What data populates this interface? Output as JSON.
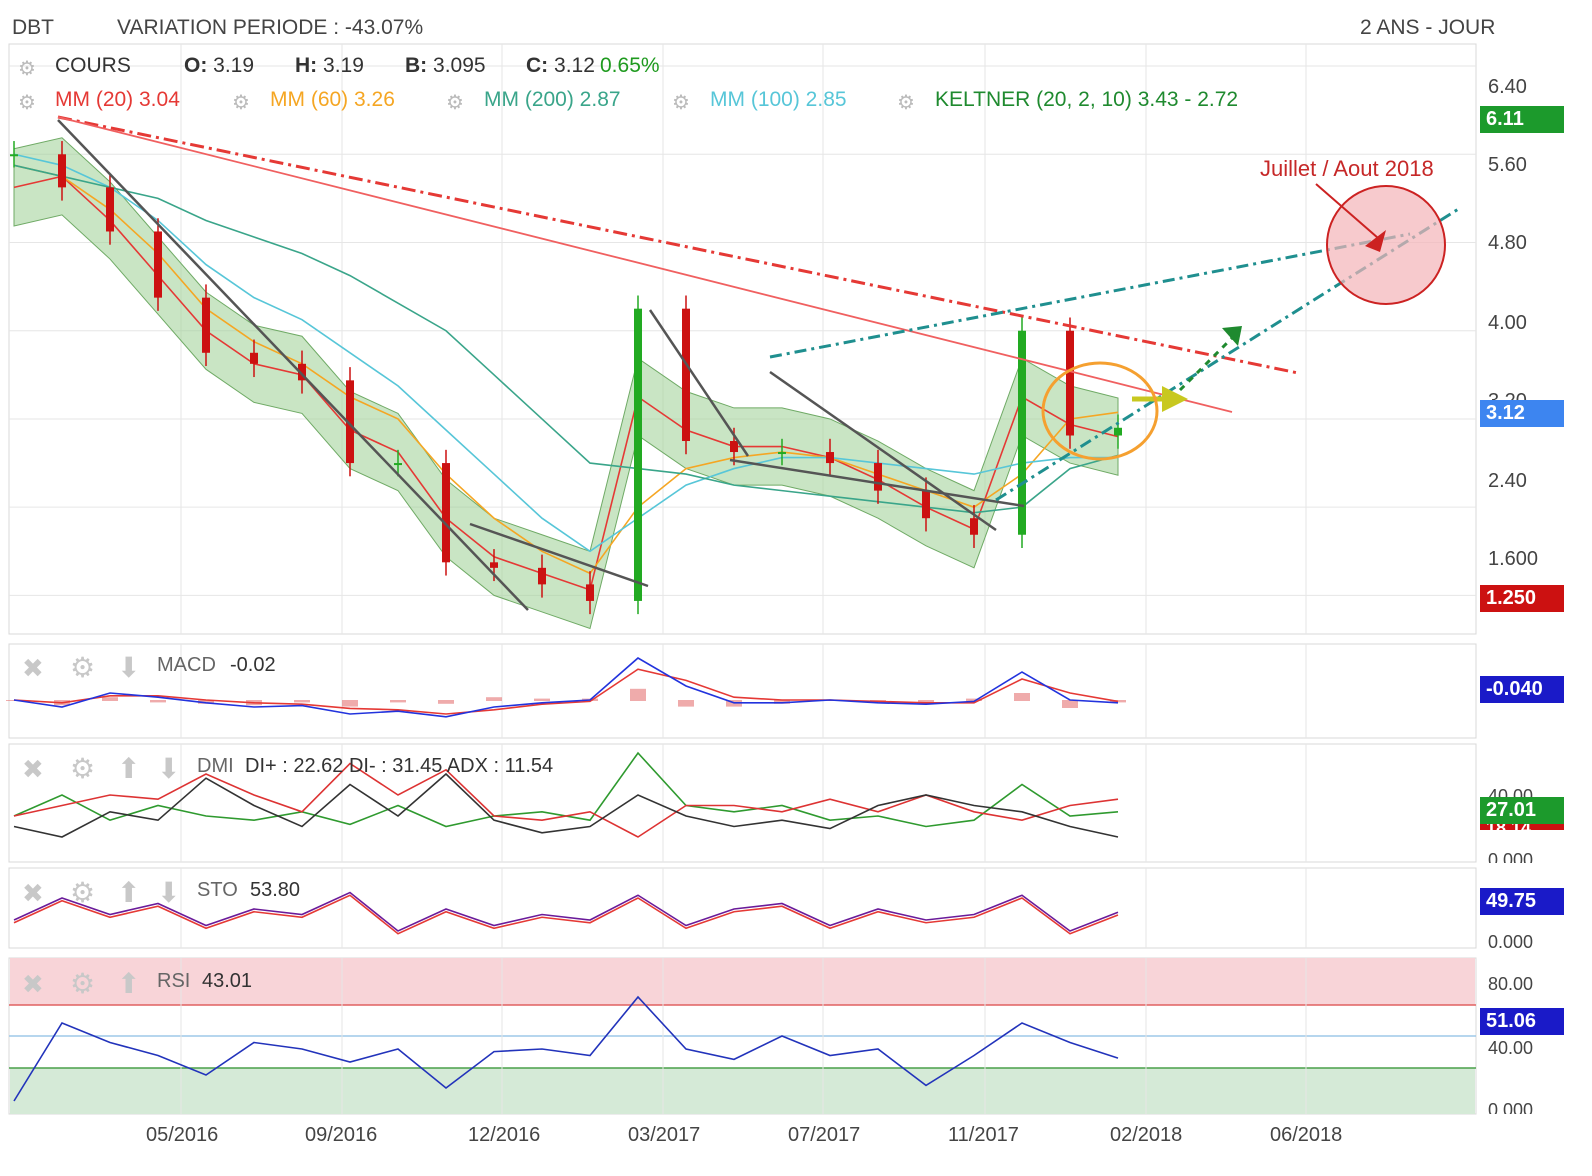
{
  "header": {
    "ticker": "DBT",
    "variation": "VARIATION PERIODE : -43.07%",
    "period": "2 ANS - JOUR"
  },
  "legend": {
    "cours": "COURS",
    "ohlc": [
      {
        "k": "O:",
        "v": "3.19"
      },
      {
        "k": "H:",
        "v": "3.19"
      },
      {
        "k": "B:",
        "v": "3.095"
      },
      {
        "k": "C:",
        "v": "3.12"
      }
    ],
    "change": "0.65%",
    "mm20": "MM (20)  3.04",
    "mm60": "MM (60)  3.26",
    "mm200": "MM (200)  2.87",
    "mm100": "MM (100)  2.85",
    "keltner": "KELTNER (20, 2, 10)  3.43 - 2.72"
  },
  "annotation": "Juillet / Aout 2018",
  "colors": {
    "up": "#22aa22",
    "down": "#cc1111",
    "mm20": "#e53935",
    "mm60": "#f5a623",
    "mm200": "#3aa58a",
    "mm100": "#57c6d8",
    "keltner_fill": "#9ccf93",
    "macd": "#2233dd",
    "signal": "#e53935",
    "rsi": "#2233bb",
    "grid": "#e6e6e6"
  },
  "icons": [
    "gear-icon",
    "close-icon",
    "arrow-up-icon",
    "arrow-down-icon"
  ],
  "indicators": {
    "macd": {
      "label": "MACD",
      "value": "-0.02",
      "pill": "-0.040"
    },
    "dmi": {
      "label": "DMI",
      "value": "DI+ : 22.62 DI- : 31.45 ADX : 11.54",
      "pill_top": "27.01",
      "pill_hidden": "18.14"
    },
    "sto": {
      "label": "STO",
      "value": "53.80",
      "pill": "49.75"
    },
    "rsi": {
      "label": "RSI",
      "value": "43.01",
      "pill": "51.06"
    }
  },
  "price_axis": {
    "ticks": [
      "6.40",
      "5.60",
      "4.80",
      "4.00",
      "3.20",
      "2.40",
      "1.600"
    ],
    "pill_top": "6.11",
    "pill_current": "3.12",
    "pill_low": "1.250"
  },
  "dmi_axis": {
    "ticks": [
      "40.00",
      "0.000"
    ]
  },
  "sto_axis": {
    "ticks": [
      "0.000"
    ]
  },
  "rsi_axis": {
    "ticks": [
      "80.00",
      "40.00",
      "0.000"
    ]
  },
  "x_axis": {
    "labels": [
      "05/2016",
      "09/2016",
      "12/2016",
      "03/2017",
      "07/2017",
      "11/2017",
      "02/2018",
      "06/2018"
    ]
  },
  "chart_data": {
    "type": "line",
    "title": "DBT",
    "ylim": [
      1.25,
      6.6
    ],
    "scale": "linear",
    "grid": true,
    "legend_position": "top-left",
    "x": [
      "02/2016",
      "03/2016",
      "04/2016",
      "05/2016",
      "06/2016",
      "07/2016",
      "08/2016",
      "09/2016",
      "10/2016",
      "11/2016",
      "12/2016",
      "01/2017",
      "02/2017",
      "03/2017",
      "04/2017",
      "05/2017",
      "06/2017",
      "07/2017",
      "08/2017",
      "09/2017",
      "10/2017",
      "11/2017",
      "12/2017",
      "01/2018"
    ],
    "series": [
      {
        "name": "COURS",
        "values": [
          5.6,
          5.3,
          4.9,
          4.3,
          3.8,
          3.7,
          3.55,
          2.8,
          2.8,
          1.9,
          1.85,
          1.7,
          1.55,
          4.2,
          3.0,
          2.9,
          2.9,
          2.8,
          2.55,
          2.3,
          2.15,
          4.0,
          3.05,
          3.12
        ]
      },
      {
        "name": "MM (20)",
        "values": [
          5.3,
          5.4,
          5.0,
          4.5,
          4.0,
          3.7,
          3.6,
          3.1,
          2.9,
          2.3,
          1.95,
          1.8,
          1.65,
          3.4,
          3.1,
          2.95,
          2.95,
          2.85,
          2.65,
          2.4,
          2.2,
          3.4,
          3.15,
          3.04
        ]
      },
      {
        "name": "MM (60)",
        "values": [
          5.5,
          5.4,
          5.1,
          4.7,
          4.2,
          3.9,
          3.7,
          3.4,
          3.2,
          2.7,
          2.3,
          2.0,
          1.8,
          2.4,
          2.75,
          2.85,
          2.9,
          2.85,
          2.7,
          2.55,
          2.4,
          2.7,
          3.2,
          3.26
        ]
      },
      {
        "name": "MM (100)",
        "values": [
          5.6,
          5.5,
          5.3,
          5.0,
          4.6,
          4.3,
          4.1,
          3.8,
          3.5,
          3.1,
          2.7,
          2.3,
          2.0,
          2.3,
          2.6,
          2.75,
          2.85,
          2.85,
          2.8,
          2.75,
          2.7,
          2.8,
          2.85,
          2.85
        ]
      },
      {
        "name": "MM (200)",
        "values": [
          5.5,
          5.4,
          5.3,
          5.2,
          5.0,
          4.85,
          4.7,
          4.5,
          4.25,
          4.0,
          3.6,
          3.2,
          2.8,
          2.75,
          2.7,
          2.6,
          2.55,
          2.5,
          2.45,
          2.4,
          2.35,
          2.4,
          2.75,
          2.87
        ]
      }
    ]
  }
}
